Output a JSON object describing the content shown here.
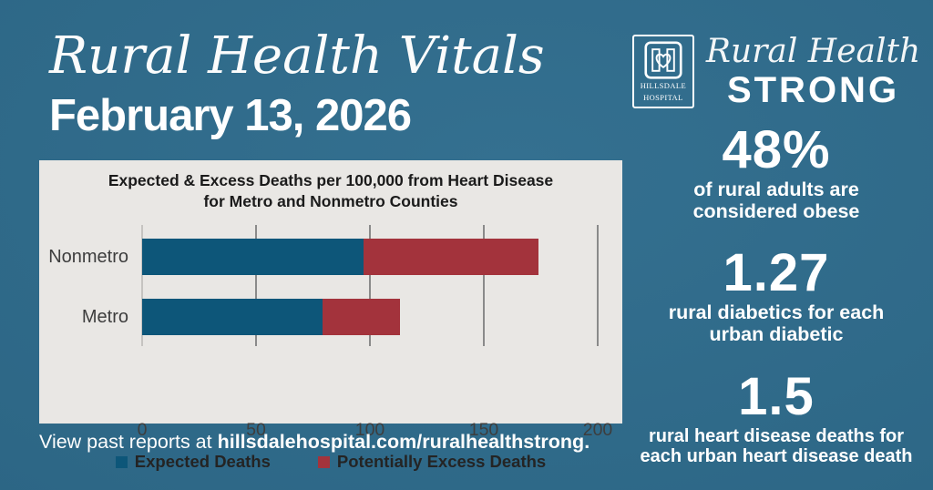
{
  "colors": {
    "background": "#2d6786",
    "panel": "#e9e7e4",
    "expected_blue": "#0d5679",
    "excess_red": "#a3333c",
    "white": "#ffffff"
  },
  "header": {
    "title": "Rural Health Vitals",
    "date": "February 13, 2026"
  },
  "chart_data": {
    "type": "bar",
    "orientation": "horizontal",
    "title": "Expected & Excess Deaths per 100,000 from Heart Disease for Metro and Nonmetro Counties",
    "categories": [
      "Nonmetro",
      "Metro"
    ],
    "series": [
      {
        "name": "Expected Deaths",
        "color": "#0d5679",
        "values": [
          97,
          79
        ]
      },
      {
        "name": "Potentially Excess Deaths",
        "color": "#a3333c",
        "values": [
          77,
          34
        ]
      }
    ],
    "stacked": true,
    "totals": [
      174,
      113
    ],
    "x_ticks": [
      0,
      50,
      100,
      150,
      200
    ],
    "xlim": [
      0,
      200
    ],
    "grid": true,
    "legend_position": "bottom"
  },
  "footer": {
    "prefix": "View past reports at ",
    "link": "hillsdalehospital.com/ruralhealthstrong",
    "suffix": "."
  },
  "sidebar": {
    "logo": {
      "line1": "HILLSDALE",
      "line2": "HOSPITAL"
    },
    "brand": {
      "line1": "Rural Health",
      "line2": "STRONG"
    },
    "stats": [
      {
        "value": "48%",
        "lines": [
          "of rural adults are",
          "considered obese"
        ]
      },
      {
        "value": "1.27",
        "lines": [
          "rural diabetics for each",
          "urban diabetic"
        ]
      },
      {
        "value": "1.5",
        "lines": [
          "rural heart disease deaths for",
          "each urban heart disease death"
        ]
      }
    ]
  }
}
